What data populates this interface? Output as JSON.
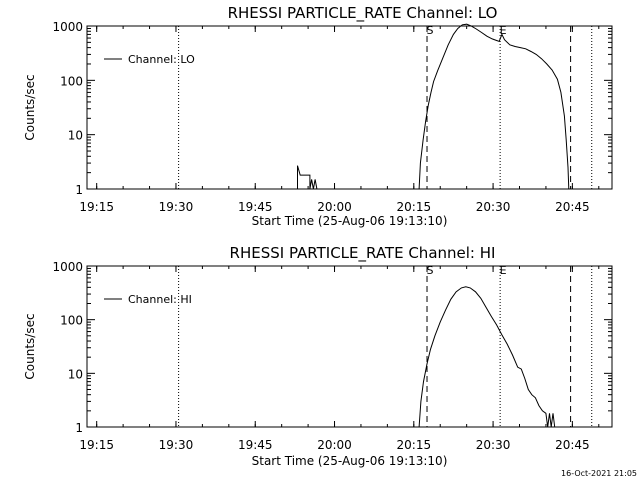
{
  "footer_timestamp": "16-Oct-2021 21:05",
  "chart_data": [
    {
      "type": "line",
      "title": "RHESSI PARTICLE_RATE Channel: LO",
      "xlabel": "Start Time (25-Aug-06 19:13:10)",
      "ylabel": "Counts/sec",
      "xlim": [
        "19:13:10",
        "20:52:30"
      ],
      "ylim": [
        1,
        1000
      ],
      "y_scale": "log",
      "x_ticks": [
        "19:15",
        "19:30",
        "19:45",
        "20:00",
        "20:15",
        "20:30",
        "20:45"
      ],
      "y_ticks": [
        {
          "label": "1",
          "value": 1
        },
        {
          "label": "10",
          "value": 10
        },
        {
          "label": "100",
          "value": 100
        },
        {
          "label": "1000",
          "value": 1000
        }
      ],
      "legend": {
        "position": "upper-left",
        "entries": [
          "Channel: LO"
        ]
      },
      "markers": [
        {
          "label": "S",
          "time": "20:17:30",
          "style": "dashed"
        },
        {
          "label": "E",
          "time": "20:31:20",
          "style": "dotted"
        },
        {
          "label": "",
          "time": "20:44:40",
          "style": "dashed"
        },
        {
          "label": "",
          "time": "19:30:30",
          "style": "dotted"
        },
        {
          "label": "",
          "time": "20:48:40",
          "style": "dotted"
        }
      ],
      "series": [
        {
          "name": "Channel: LO",
          "segments": [
            [
              [
                "19:53:00",
                1
              ],
              [
                "19:53:00",
                2.7
              ],
              [
                "19:53:30",
                1.8
              ],
              [
                "19:54:30",
                1.8
              ],
              [
                "19:55:20",
                1.8
              ],
              [
                "19:55:20",
                1
              ],
              [
                "19:55:40",
                1.5
              ],
              [
                "19:56:00",
                1
              ],
              [
                "19:56:20",
                1.5
              ],
              [
                "19:56:40",
                1
              ]
            ],
            [
              [
                "20:16:00",
                1
              ],
              [
                "20:16:15",
                3
              ],
              [
                "20:16:45",
                8
              ],
              [
                "20:17:15",
                18
              ],
              [
                "20:17:45",
                35
              ],
              [
                "20:18:15",
                60
              ],
              [
                "20:18:45",
                95
              ],
              [
                "20:19:30",
                150
              ],
              [
                "20:20:30",
                260
              ],
              [
                "20:21:30",
                450
              ],
              [
                "20:22:30",
                700
              ],
              [
                "20:23:20",
                900
              ],
              [
                "20:24:10",
                1050
              ],
              [
                "20:25:00",
                1080
              ],
              [
                "20:25:50",
                1000
              ],
              [
                "20:26:50",
                880
              ],
              [
                "20:27:50",
                760
              ],
              [
                "20:28:50",
                650
              ],
              [
                "20:29:50",
                580
              ],
              [
                "20:30:40",
                540
              ],
              [
                "20:31:10",
                520
              ],
              [
                "20:31:40",
                700
              ],
              [
                "20:32:10",
                560
              ],
              [
                "20:33:10",
                450
              ],
              [
                "20:34:10",
                420
              ],
              [
                "20:35:10",
                400
              ],
              [
                "20:36:10",
                380
              ],
              [
                "20:37:10",
                340
              ],
              [
                "20:38:10",
                300
              ],
              [
                "20:39:10",
                250
              ],
              [
                "20:40:10",
                200
              ],
              [
                "20:41:10",
                155
              ],
              [
                "20:42:10",
                105
              ],
              [
                "20:42:50",
                60
              ],
              [
                "20:43:30",
                22
              ],
              [
                "20:43:50",
                8
              ],
              [
                "20:44:10",
                2.5
              ],
              [
                "20:44:20",
                1
              ]
            ]
          ]
        }
      ]
    },
    {
      "type": "line",
      "title": "RHESSI PARTICLE_RATE Channel: HI",
      "xlabel": "Start Time (25-Aug-06 19:13:10)",
      "ylabel": "Counts/sec",
      "xlim": [
        "19:13:10",
        "20:52:30"
      ],
      "ylim": [
        1,
        1000
      ],
      "y_scale": "log",
      "x_ticks": [
        "19:15",
        "19:30",
        "19:45",
        "20:00",
        "20:15",
        "20:30",
        "20:45"
      ],
      "y_ticks": [
        {
          "label": "1",
          "value": 1
        },
        {
          "label": "10",
          "value": 10
        },
        {
          "label": "100",
          "value": 100
        },
        {
          "label": "1000",
          "value": 1000
        }
      ],
      "legend": {
        "position": "upper-left",
        "entries": [
          "Channel: HI"
        ]
      },
      "markers": [
        {
          "label": "S",
          "time": "20:17:30",
          "style": "dashed"
        },
        {
          "label": "E",
          "time": "20:31:20",
          "style": "dotted"
        },
        {
          "label": "",
          "time": "20:44:40",
          "style": "dashed"
        },
        {
          "label": "",
          "time": "19:30:30",
          "style": "dotted"
        },
        {
          "label": "",
          "time": "20:48:40",
          "style": "dotted"
        }
      ],
      "series": [
        {
          "name": "Channel: HI",
          "segments": [
            [
              [
                "20:16:00",
                1
              ],
              [
                "20:16:20",
                3
              ],
              [
                "20:16:50",
                7
              ],
              [
                "20:17:30",
                15
              ],
              [
                "20:18:10",
                28
              ],
              [
                "20:19:00",
                50
              ],
              [
                "20:20:00",
                90
              ],
              [
                "20:21:00",
                150
              ],
              [
                "20:22:00",
                240
              ],
              [
                "20:23:00",
                330
              ],
              [
                "20:24:00",
                390
              ],
              [
                "20:24:50",
                410
              ],
              [
                "20:25:40",
                390
              ],
              [
                "20:26:40",
                330
              ],
              [
                "20:27:40",
                250
              ],
              [
                "20:28:40",
                170
              ],
              [
                "20:29:40",
                115
              ],
              [
                "20:30:40",
                80
              ],
              [
                "20:31:40",
                52
              ],
              [
                "20:32:40",
                35
              ],
              [
                "20:33:40",
                22
              ],
              [
                "20:34:40",
                13
              ],
              [
                "20:35:20",
                12
              ],
              [
                "20:36:00",
                8
              ],
              [
                "20:36:40",
                5
              ],
              [
                "20:37:20",
                4
              ],
              [
                "20:38:00",
                3.5
              ],
              [
                "20:38:40",
                2.5
              ],
              [
                "20:39:20",
                2
              ],
              [
                "20:40:00",
                1.8
              ],
              [
                "20:40:20",
                1
              ],
              [
                "20:40:40",
                1.8
              ],
              [
                "20:41:00",
                1
              ],
              [
                "20:41:20",
                1.8
              ],
              [
                "20:41:40",
                1
              ]
            ]
          ]
        }
      ]
    }
  ]
}
